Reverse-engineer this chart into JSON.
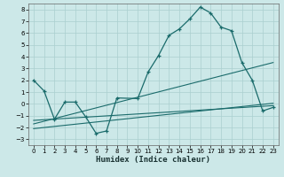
{
  "xlabel": "Humidex (Indice chaleur)",
  "background_color": "#cce8e8",
  "grid_color": "#aacfcf",
  "line_color": "#1a6b6b",
  "xlim": [
    -0.5,
    23.5
  ],
  "ylim": [
    -3.5,
    8.5
  ],
  "xticks": [
    0,
    1,
    2,
    3,
    4,
    5,
    6,
    7,
    8,
    9,
    10,
    11,
    12,
    13,
    14,
    15,
    16,
    17,
    18,
    19,
    20,
    21,
    22,
    23
  ],
  "yticks": [
    -3,
    -2,
    -1,
    0,
    1,
    2,
    3,
    4,
    5,
    6,
    7,
    8
  ],
  "series1_x": [
    0,
    1,
    2,
    3,
    4,
    5,
    6,
    7,
    8,
    10,
    11,
    12,
    13,
    14,
    15,
    16,
    17,
    18,
    19,
    20,
    21,
    22,
    23
  ],
  "series1_y": [
    2.0,
    1.1,
    -1.3,
    0.15,
    0.15,
    -1.1,
    -2.5,
    -2.3,
    0.5,
    0.45,
    2.7,
    4.1,
    5.8,
    6.35,
    7.2,
    8.2,
    7.7,
    6.5,
    6.2,
    3.5,
    2.0,
    -0.6,
    -0.3
  ],
  "line1_x": [
    0,
    23
  ],
  "line1_y": [
    -1.4,
    -0.15
  ],
  "line2_x": [
    0,
    23
  ],
  "line2_y": [
    -1.7,
    3.5
  ],
  "line3_x": [
    0,
    23
  ],
  "line3_y": [
    -2.1,
    0.05
  ]
}
